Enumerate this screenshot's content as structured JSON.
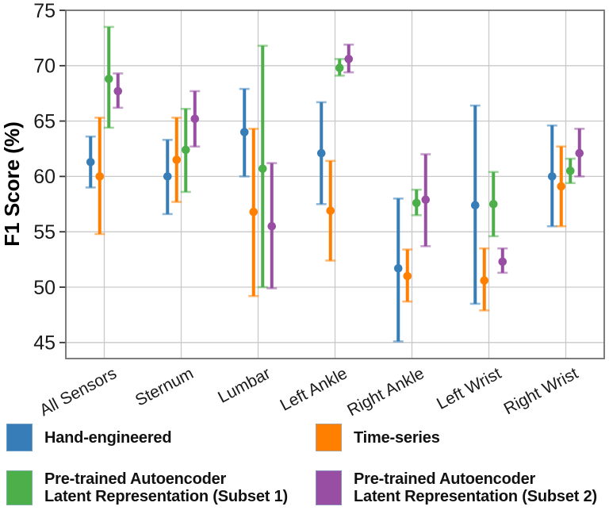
{
  "figure": {
    "title": "",
    "ylabel": "F1 Score (%)"
  },
  "chart_data": {
    "type": "errorbar",
    "title": "",
    "xlabel": "",
    "ylabel": "F1 Score (%)",
    "ylim": [
      43.5,
      75
    ],
    "yticks": [
      45,
      50,
      55,
      60,
      65,
      70,
      75
    ],
    "grid": true,
    "legend_position": "bottom",
    "categories": [
      "All Sensors",
      "Sternum",
      "Lumbar",
      "Left Ankle",
      "Right Ankle",
      "Left Wrist",
      "Right Wrist"
    ],
    "series": [
      {
        "name": "Hand-engineered",
        "color": "#377EB8",
        "points": [
          {
            "y": 61.3,
            "lo": 59.0,
            "hi": 63.6
          },
          {
            "y": 60.0,
            "lo": 56.6,
            "hi": 63.3
          },
          {
            "y": 64.0,
            "lo": 60.0,
            "hi": 67.9
          },
          {
            "y": 62.1,
            "lo": 57.5,
            "hi": 66.7
          },
          {
            "y": 51.7,
            "lo": 45.1,
            "hi": 58.0
          },
          {
            "y": 57.4,
            "lo": 48.5,
            "hi": 66.4
          },
          {
            "y": 60.0,
            "lo": 55.5,
            "hi": 64.6
          }
        ]
      },
      {
        "name": "Time-series",
        "color": "#FF7F00",
        "points": [
          {
            "y": 60.0,
            "lo": 54.8,
            "hi": 65.3
          },
          {
            "y": 61.5,
            "lo": 57.7,
            "hi": 65.3
          },
          {
            "y": 56.8,
            "lo": 49.2,
            "hi": 64.3
          },
          {
            "y": 56.9,
            "lo": 52.4,
            "hi": 61.4
          },
          {
            "y": 51.0,
            "lo": 48.7,
            "hi": 53.4
          },
          {
            "y": 50.6,
            "lo": 47.9,
            "hi": 53.5
          },
          {
            "y": 59.1,
            "lo": 55.5,
            "hi": 62.7
          }
        ]
      },
      {
        "name": "Pre-trained Autoencoder Latent Representation (Subset 1)",
        "color": "#4DAF4A",
        "points": [
          {
            "y": 68.8,
            "lo": 64.4,
            "hi": 73.5
          },
          {
            "y": 62.4,
            "lo": 58.6,
            "hi": 66.1
          },
          {
            "y": 60.7,
            "lo": 50.0,
            "hi": 71.8
          },
          {
            "y": 69.8,
            "lo": 69.1,
            "hi": 70.6
          },
          {
            "y": 57.6,
            "lo": 56.5,
            "hi": 58.8
          },
          {
            "y": 57.5,
            "lo": 54.6,
            "hi": 60.4
          },
          {
            "y": 60.5,
            "lo": 59.4,
            "hi": 61.6
          }
        ]
      },
      {
        "name": "Pre-trained Autoencoder Latent Representation (Subset 2)",
        "color": "#984EA3",
        "points": [
          {
            "y": 67.7,
            "lo": 66.2,
            "hi": 69.3
          },
          {
            "y": 65.2,
            "lo": 62.7,
            "hi": 67.7
          },
          {
            "y": 55.5,
            "lo": 49.9,
            "hi": 61.2
          },
          {
            "y": 70.6,
            "lo": 69.4,
            "hi": 71.9
          },
          {
            "y": 57.9,
            "lo": 53.7,
            "hi": 62.0
          },
          {
            "y": 52.3,
            "lo": 51.3,
            "hi": 53.5
          },
          {
            "y": 62.1,
            "lo": 60.0,
            "hi": 64.3
          }
        ]
      }
    ],
    "colors": {
      "grid": "#c9c9c9",
      "frame": "#6f6f6f",
      "tick": "#333333",
      "text": "#1a1a1a"
    }
  },
  "legend": {
    "items": [
      {
        "line1": "Hand-engineered",
        "line2": "",
        "color": "#377EB8"
      },
      {
        "line1": "Time-series",
        "line2": "",
        "color": "#FF7F00"
      },
      {
        "line1": "Pre-trained Autoencoder",
        "line2": "Latent Representation (Subset 1)",
        "color": "#4DAF4A"
      },
      {
        "line1": "Pre-trained Autoencoder",
        "line2": "Latent Representation (Subset 2)",
        "color": "#984EA3"
      }
    ]
  }
}
